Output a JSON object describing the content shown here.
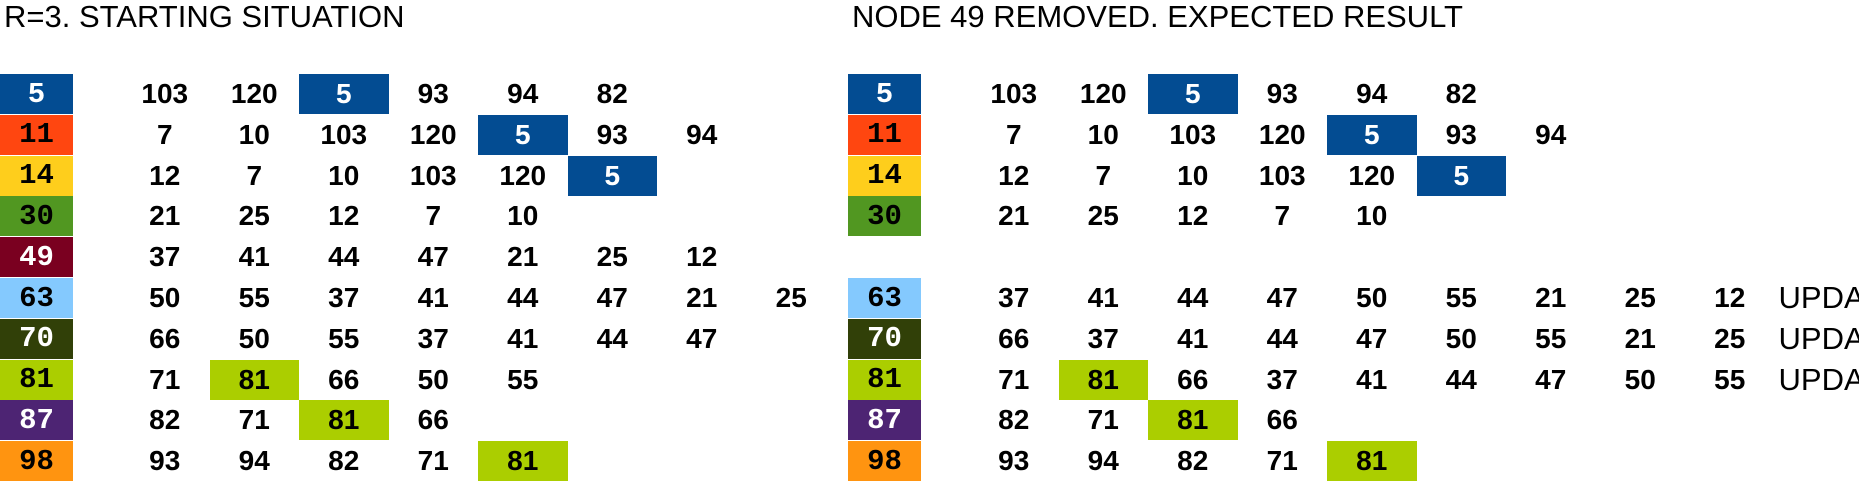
{
  "colors": {
    "5": "#034C92",
    "11": "#FF4610",
    "14": "#FECE1C",
    "30": "#519721",
    "49": "#7A0020",
    "63": "#84C9FE",
    "70": "#314008",
    "81": "#ABCE00",
    "87": "#4D2473",
    "98": "#FF9410"
  },
  "text_colors": {
    "5": "#ffffff",
    "11": "#000000",
    "14": "#000000",
    "30": "#000000",
    "49": "#ffffff",
    "63": "#000000",
    "70": "#ffffff",
    "81": "#000000",
    "87": "#ffffff",
    "98": "#000000"
  },
  "panels": [
    {
      "title": "R=3. STARTING SITUATION",
      "rows": [
        {
          "node": 5,
          "items": [
            103,
            120,
            5,
            93,
            94,
            82
          ],
          "status": ""
        },
        {
          "node": 11,
          "items": [
            7,
            10,
            103,
            120,
            5,
            93,
            94
          ],
          "status": ""
        },
        {
          "node": 14,
          "items": [
            12,
            7,
            10,
            103,
            120,
            5
          ],
          "status": ""
        },
        {
          "node": 30,
          "items": [
            21,
            25,
            12,
            7,
            10
          ],
          "status": ""
        },
        {
          "node": 49,
          "items": [
            37,
            41,
            44,
            47,
            21,
            25,
            12
          ],
          "status": ""
        },
        {
          "node": 63,
          "items": [
            50,
            55,
            37,
            41,
            44,
            47,
            21,
            25
          ],
          "status": ""
        },
        {
          "node": 70,
          "items": [
            66,
            50,
            55,
            37,
            41,
            44,
            47
          ],
          "status": ""
        },
        {
          "node": 81,
          "items": [
            71,
            81,
            66,
            50,
            55
          ],
          "status": ""
        },
        {
          "node": 87,
          "items": [
            82,
            71,
            81,
            66
          ],
          "status": ""
        },
        {
          "node": 98,
          "items": [
            93,
            94,
            82,
            71,
            81
          ],
          "status": ""
        }
      ]
    },
    {
      "title": "NODE 49 REMOVED. EXPECTED RESULT",
      "rows": [
        {
          "node": 5,
          "items": [
            103,
            120,
            5,
            93,
            94,
            82
          ],
          "status": ""
        },
        {
          "node": 11,
          "items": [
            7,
            10,
            103,
            120,
            5,
            93,
            94
          ],
          "status": ""
        },
        {
          "node": 14,
          "items": [
            12,
            7,
            10,
            103,
            120,
            5
          ],
          "status": ""
        },
        {
          "node": 30,
          "items": [
            21,
            25,
            12,
            7,
            10
          ],
          "status": ""
        },
        null,
        {
          "node": 63,
          "items": [
            37,
            41,
            44,
            47,
            50,
            55,
            21,
            25,
            12
          ],
          "status": "UPDATED"
        },
        {
          "node": 70,
          "items": [
            66,
            37,
            41,
            44,
            47,
            50,
            55,
            21,
            25
          ],
          "status": "UPDATED"
        },
        {
          "node": 81,
          "items": [
            71,
            81,
            66,
            37,
            41,
            44,
            47,
            50,
            55
          ],
          "status": "UPDATED"
        },
        {
          "node": 87,
          "items": [
            82,
            71,
            81,
            66
          ],
          "status": ""
        },
        {
          "node": 98,
          "items": [
            93,
            94,
            82,
            71,
            81
          ],
          "status": ""
        }
      ]
    }
  ]
}
